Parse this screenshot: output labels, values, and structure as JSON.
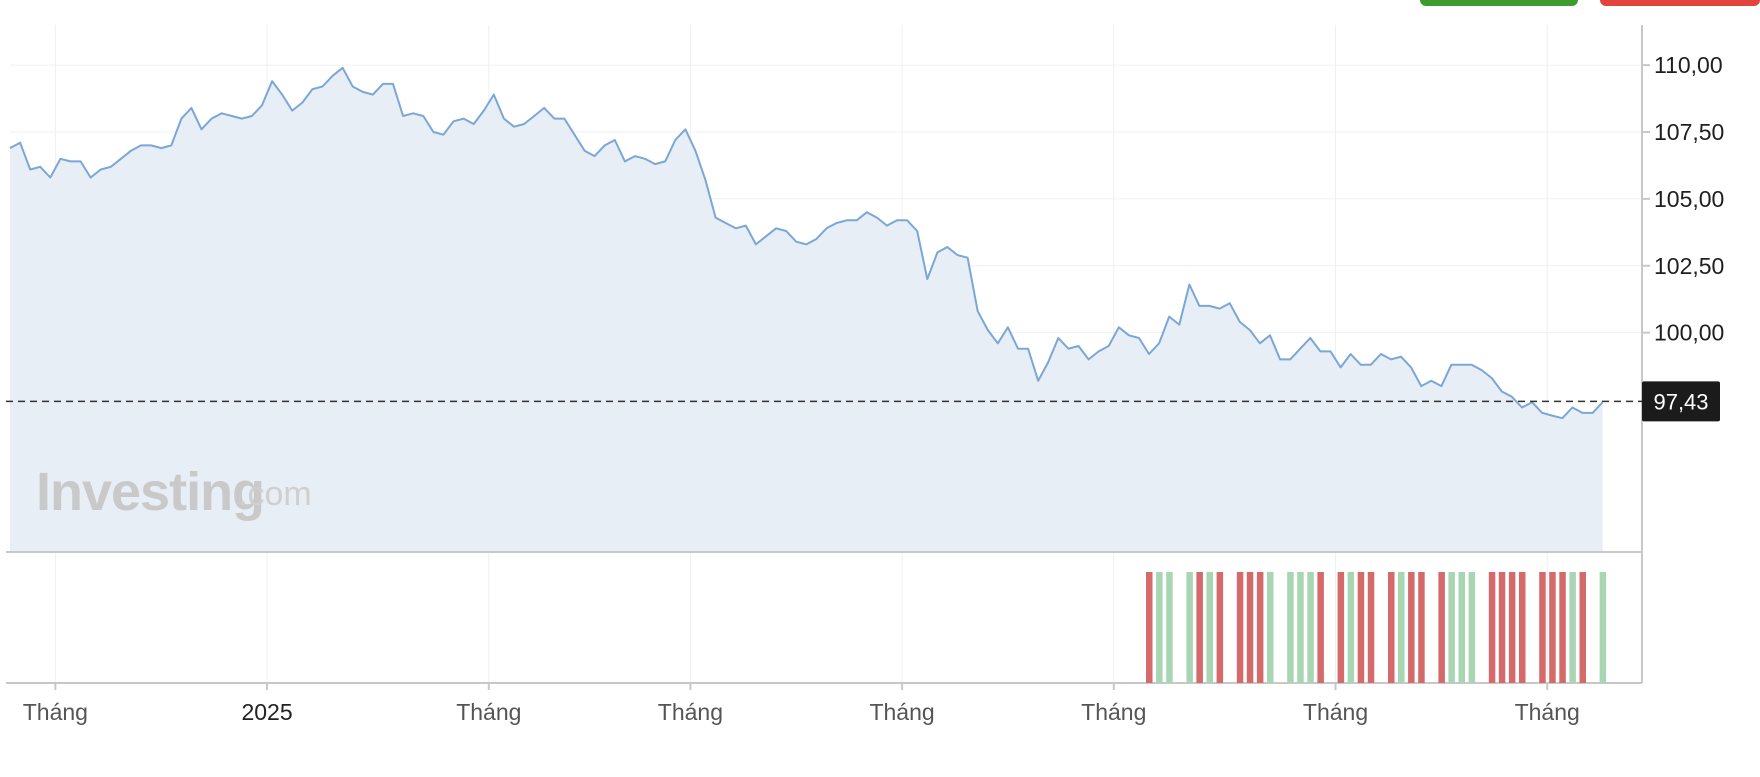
{
  "header": {
    "buy_button_color": "#3e9b2f",
    "sell_button_color": "#e1443a"
  },
  "watermark": {
    "main": "Investing",
    "suffix": ".com"
  },
  "current_price": {
    "label": "97,43",
    "value": 97.43
  },
  "colors": {
    "line": "#7aa7d6",
    "area": "#e8eef6",
    "volume_up": "#a8d6b3",
    "volume_down": "#d56a6a",
    "price_badge": "#1b1b1b",
    "grid": "#f0f0f0"
  },
  "chart_data": {
    "type": "area",
    "title": "",
    "xlabel": "",
    "ylabel": "",
    "ylim": [
      91.8,
      111.5
    ],
    "y_ticks": [
      {
        "value": 110,
        "label": "110,00"
      },
      {
        "value": 107.5,
        "label": "107,50"
      },
      {
        "value": 105,
        "label": "105,00"
      },
      {
        "value": 102.5,
        "label": "102,50"
      },
      {
        "value": 100,
        "label": "100,00"
      }
    ],
    "x_ticks": [
      {
        "index": 4.5,
        "label": "Tháng"
      },
      {
        "index": 25.5,
        "label": "2025"
      },
      {
        "index": 47.5,
        "label": "Tháng"
      },
      {
        "index": 67.5,
        "label": "Tháng"
      },
      {
        "index": 88.5,
        "label": "Tháng"
      },
      {
        "index": 109.5,
        "label": "Tháng"
      },
      {
        "index": 131.5,
        "label": "Tháng"
      },
      {
        "index": 152.5,
        "label": "Tháng"
      }
    ],
    "grid": true,
    "dashed_reference_line": 97.43,
    "series": [
      {
        "values": [
          106.9,
          107.1,
          106.1,
          106.2,
          105.8,
          106.5,
          106.4,
          106.4,
          105.8,
          106.1,
          106.2,
          106.5,
          106.8,
          107.0,
          107.0,
          106.9,
          107.0,
          108.0,
          108.4,
          107.6,
          108.0,
          108.2,
          108.1,
          108.0,
          108.1,
          108.5,
          109.4,
          108.9,
          108.3,
          108.6,
          109.1,
          109.2,
          109.6,
          109.9,
          109.2,
          109.0,
          108.9,
          109.3,
          109.3,
          108.1,
          108.2,
          108.1,
          107.5,
          107.4,
          107.9,
          108.0,
          107.8,
          108.3,
          108.9,
          108.0,
          107.7,
          107.8,
          108.1,
          108.4,
          108.0,
          108.0,
          107.4,
          106.8,
          106.6,
          107.0,
          107.2,
          106.4,
          106.6,
          106.5,
          106.3,
          106.4,
          107.2,
          107.6,
          106.8,
          105.7,
          104.3,
          104.1,
          103.9,
          104.0,
          103.3,
          103.6,
          103.9,
          103.8,
          103.4,
          103.3,
          103.5,
          103.9,
          104.1,
          104.2,
          104.2,
          104.5,
          104.3,
          104.0,
          104.2,
          104.2,
          103.8,
          102.0,
          103.0,
          103.2,
          102.9,
          102.8,
          100.8,
          100.1,
          99.6,
          100.2,
          99.4,
          99.4,
          98.2,
          98.9,
          99.8,
          99.4,
          99.5,
          99.0,
          99.3,
          99.5,
          100.2,
          99.9,
          99.8,
          99.2,
          99.6,
          100.6,
          100.3,
          101.8,
          101.0,
          101.0,
          100.9,
          101.1,
          100.4,
          100.1,
          99.6,
          99.9,
          99.0,
          99.0,
          99.4,
          99.8,
          99.3,
          99.3,
          98.7,
          99.2,
          98.8,
          98.8,
          99.2,
          99.0,
          99.1,
          98.7,
          98.0,
          98.2,
          98.0,
          98.8,
          98.8,
          98.8,
          98.6,
          98.3,
          97.8,
          97.6,
          97.2,
          97.4,
          97.0,
          96.9,
          96.8,
          97.2,
          97.0,
          97.0,
          97.4
        ]
      }
    ],
    "volume": {
      "direction_colors": {
        "up": "#a8d6b3",
        "down": "#d56a6a"
      },
      "bars": [
        {
          "index": 113,
          "dir": "down"
        },
        {
          "index": 114,
          "dir": "up"
        },
        {
          "index": 115,
          "dir": "up"
        },
        {
          "index": 117,
          "dir": "up"
        },
        {
          "index": 118,
          "dir": "down"
        },
        {
          "index": 119,
          "dir": "up"
        },
        {
          "index": 120,
          "dir": "down"
        },
        {
          "index": 122,
          "dir": "down"
        },
        {
          "index": 123,
          "dir": "down"
        },
        {
          "index": 124,
          "dir": "down"
        },
        {
          "index": 125,
          "dir": "up"
        },
        {
          "index": 127,
          "dir": "up"
        },
        {
          "index": 128,
          "dir": "up"
        },
        {
          "index": 129,
          "dir": "up"
        },
        {
          "index": 130,
          "dir": "down"
        },
        {
          "index": 132,
          "dir": "down"
        },
        {
          "index": 133,
          "dir": "up"
        },
        {
          "index": 134,
          "dir": "down"
        },
        {
          "index": 135,
          "dir": "down"
        },
        {
          "index": 137,
          "dir": "down"
        },
        {
          "index": 138,
          "dir": "up"
        },
        {
          "index": 139,
          "dir": "down"
        },
        {
          "index": 140,
          "dir": "down"
        },
        {
          "index": 142,
          "dir": "down"
        },
        {
          "index": 143,
          "dir": "up"
        },
        {
          "index": 144,
          "dir": "up"
        },
        {
          "index": 145,
          "dir": "up"
        },
        {
          "index": 147,
          "dir": "down"
        },
        {
          "index": 148,
          "dir": "down"
        },
        {
          "index": 149,
          "dir": "down"
        },
        {
          "index": 150,
          "dir": "down"
        },
        {
          "index": 152,
          "dir": "down"
        },
        {
          "index": 153,
          "dir": "down"
        },
        {
          "index": 154,
          "dir": "down"
        },
        {
          "index": 155,
          "dir": "up"
        },
        {
          "index": 156,
          "dir": "down"
        },
        {
          "index": 158,
          "dir": "up"
        }
      ]
    }
  }
}
